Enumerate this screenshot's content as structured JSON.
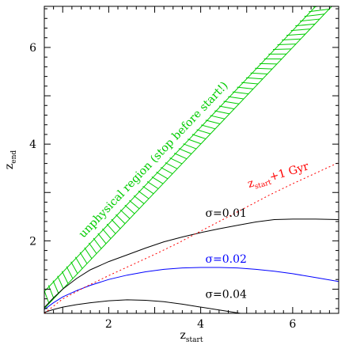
{
  "chart_data": {
    "type": "line",
    "title": "",
    "xlabel": {
      "base": "z",
      "sub": "start"
    },
    "ylabel": {
      "base": "z",
      "sub": "end"
    },
    "xlim": [
      0.6,
      7.0
    ],
    "ylim": [
      0.5,
      6.85
    ],
    "xticks": [
      2,
      4,
      6
    ],
    "yticks": [
      2,
      4,
      6
    ],
    "grid": false,
    "colors": {
      "black": "#000000",
      "blue": "#0000ff",
      "red": "#ff0000",
      "green": "#00cc00"
    },
    "series": [
      {
        "label": "σ=0.01",
        "color": "#000000",
        "style": "solid",
        "x": [
          0.6,
          0.8,
          1.0,
          1.3,
          1.6,
          2.0,
          2.4,
          2.8,
          3.2,
          3.6,
          4.0,
          4.4,
          4.8,
          5.2,
          5.6,
          6.0,
          6.5,
          7.0
        ],
        "y": [
          0.62,
          0.82,
          1.0,
          1.22,
          1.4,
          1.57,
          1.71,
          1.85,
          1.98,
          2.08,
          2.17,
          2.25,
          2.32,
          2.39,
          2.44,
          2.45,
          2.45,
          2.44
        ]
      },
      {
        "label": "σ=0.02",
        "color": "#0000ff",
        "style": "solid",
        "x": [
          0.6,
          0.8,
          1.0,
          1.3,
          1.6,
          2.0,
          2.4,
          2.8,
          3.2,
          3.6,
          4.0,
          4.4,
          4.8,
          5.2,
          5.6,
          6.0,
          6.5,
          7.0
        ],
        "y": [
          0.58,
          0.72,
          0.84,
          0.97,
          1.08,
          1.2,
          1.29,
          1.36,
          1.41,
          1.44,
          1.45,
          1.45,
          1.44,
          1.41,
          1.37,
          1.32,
          1.24,
          1.16
        ]
      },
      {
        "label": "σ=0.04",
        "color": "#000000",
        "style": "solid",
        "x": [
          0.6,
          0.8,
          1.0,
          1.3,
          1.6,
          2.0,
          2.4,
          2.8,
          3.2,
          3.6,
          4.0,
          4.4,
          4.8,
          5.0
        ],
        "y": [
          0.52,
          0.58,
          0.63,
          0.68,
          0.72,
          0.76,
          0.78,
          0.77,
          0.74,
          0.69,
          0.63,
          0.57,
          0.51,
          0.48
        ]
      },
      {
        "label": "z_start+1 Gyr",
        "color": "#ff0000",
        "style": "dotted",
        "x": [
          0.6,
          1.0,
          1.5,
          2.0,
          2.5,
          3.0,
          3.5,
          4.0,
          4.5,
          5.0,
          5.5,
          6.0,
          6.5,
          7.0
        ],
        "y": [
          0.5,
          0.8,
          1.05,
          1.28,
          1.5,
          1.72,
          1.95,
          2.2,
          2.45,
          2.7,
          2.95,
          3.18,
          3.4,
          3.62
        ]
      }
    ],
    "region": {
      "label": "unphysical region (stop before start!)",
      "color": "#00cc00",
      "lower_line": [
        [
          0.6,
          0.6
        ],
        [
          7.0,
          7.0
        ]
      ],
      "upper_line": [
        [
          0.6,
          0.95
        ],
        [
          6.65,
          7.0
        ]
      ]
    },
    "annotations": [
      {
        "key": "s1",
        "sym": "σ",
        "text": "=0.01",
        "x": 4.1,
        "y": 2.5,
        "color": "#000000"
      },
      {
        "key": "s2",
        "sym": "σ",
        "text": "=0.02",
        "x": 4.1,
        "y": 1.55,
        "color": "#0000ff"
      },
      {
        "key": "s4",
        "sym": "σ",
        "text": "=0.04",
        "x": 4.1,
        "y": 0.82,
        "color": "#000000"
      }
    ],
    "gyr_label": {
      "base": "z",
      "sub": "start",
      "rest": "+1 Gyr",
      "x": 5.05,
      "y": 3.1,
      "color": "#ff0000"
    }
  }
}
